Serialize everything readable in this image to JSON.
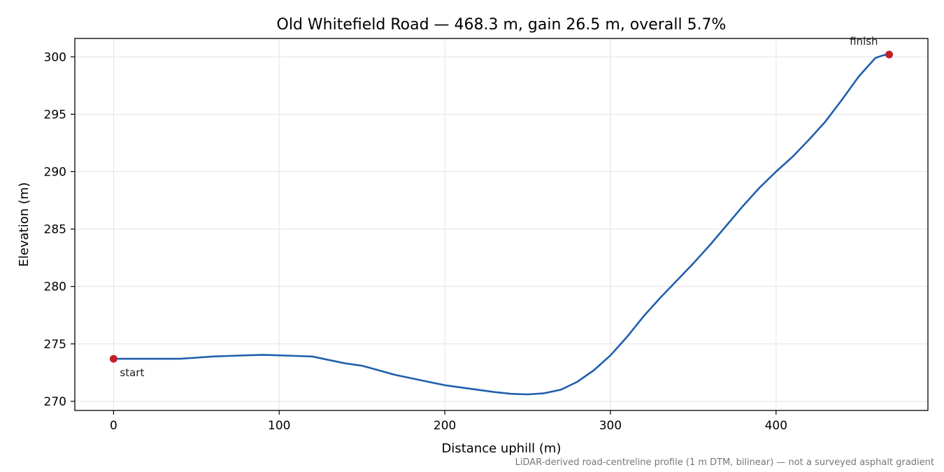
{
  "chart_data": {
    "type": "line",
    "title": "Old Whitefield Road — 468.3 m, gain 26.5 m, overall 5.7%",
    "xlabel": "Distance uphill (m)",
    "ylabel": "Elevation (m)",
    "xlim": [
      -23.4,
      491.7
    ],
    "ylim": [
      269.2,
      301.6
    ],
    "xticks": [
      0,
      100,
      200,
      300,
      400
    ],
    "yticks": [
      270,
      275,
      280,
      285,
      290,
      295,
      300
    ],
    "grid": true,
    "line_color": "#1f5fad",
    "marker_color": "#c0202a",
    "x": [
      0,
      20,
      40,
      50,
      60,
      70,
      80,
      90,
      100,
      110,
      120,
      130,
      140,
      150,
      160,
      170,
      180,
      190,
      200,
      210,
      220,
      230,
      240,
      250,
      260,
      270,
      280,
      290,
      300,
      310,
      320,
      330,
      340,
      350,
      360,
      370,
      380,
      390,
      400,
      410,
      420,
      430,
      440,
      450,
      460,
      465,
      468.3
    ],
    "y": [
      273.7,
      273.7,
      273.7,
      273.8,
      273.9,
      273.95,
      274.0,
      274.05,
      274.0,
      273.95,
      273.9,
      273.6,
      273.3,
      273.1,
      272.7,
      272.3,
      272.0,
      271.7,
      271.4,
      271.2,
      271.0,
      270.8,
      270.65,
      270.6,
      270.7,
      271.0,
      271.7,
      272.7,
      274.0,
      275.6,
      277.4,
      279.0,
      280.5,
      282.0,
      283.6,
      285.3,
      287.0,
      288.6,
      290.0,
      291.3,
      292.8,
      294.4,
      296.3,
      298.3,
      299.9,
      300.15,
      300.2
    ],
    "start_point": {
      "x": 0,
      "y": 273.7
    },
    "finish_point": {
      "x": 468.3,
      "y": 300.2
    },
    "annotations": {
      "start": "start",
      "finish": "finish"
    },
    "footnote": "LiDAR-derived road-centreline profile (1 m DTM, bilinear) — not a surveyed asphalt gradient"
  }
}
